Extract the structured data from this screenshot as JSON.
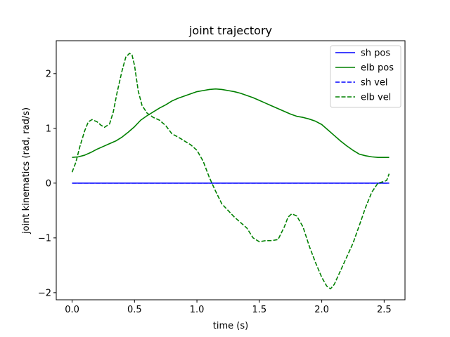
{
  "chart_data": {
    "type": "line",
    "title": "joint trajectory",
    "xlabel": "time (s)",
    "ylabel": "joint kinematics (rad, rad/s)",
    "xlim": [
      -0.127,
      2.667
    ],
    "ylim": [
      -2.13,
      2.6
    ],
    "xticks": [
      0.0,
      0.5,
      1.0,
      1.5,
      2.0,
      2.5
    ],
    "xtick_labels": [
      "0.0",
      "0.5",
      "1.0",
      "1.5",
      "2.0",
      "2.5"
    ],
    "yticks": [
      -2,
      -1,
      0,
      1,
      2
    ],
    "ytick_labels": [
      "−2",
      "−1",
      "0",
      "1",
      "2"
    ],
    "grid": false,
    "legend_position": "top-right",
    "series": [
      {
        "name": "sh pos",
        "color": "#0000ff",
        "dash": "solid",
        "x": [
          0.0,
          2.54
        ],
        "y": [
          0.0,
          0.0
        ]
      },
      {
        "name": "elb pos",
        "color": "#008000",
        "dash": "solid",
        "x": [
          0.0,
          0.05,
          0.1,
          0.15,
          0.2,
          0.25,
          0.3,
          0.35,
          0.4,
          0.45,
          0.5,
          0.55,
          0.6,
          0.65,
          0.7,
          0.75,
          0.8,
          0.85,
          0.9,
          0.95,
          1.0,
          1.05,
          1.1,
          1.15,
          1.2,
          1.25,
          1.3,
          1.35,
          1.4,
          1.45,
          1.5,
          1.55,
          1.6,
          1.65,
          1.7,
          1.75,
          1.8,
          1.85,
          1.9,
          1.95,
          2.0,
          2.05,
          2.1,
          2.15,
          2.2,
          2.25,
          2.3,
          2.35,
          2.4,
          2.45,
          2.5,
          2.54
        ],
        "y": [
          0.47,
          0.48,
          0.51,
          0.56,
          0.62,
          0.67,
          0.72,
          0.77,
          0.84,
          0.93,
          1.03,
          1.15,
          1.23,
          1.3,
          1.37,
          1.43,
          1.5,
          1.55,
          1.59,
          1.63,
          1.67,
          1.69,
          1.71,
          1.72,
          1.71,
          1.69,
          1.67,
          1.64,
          1.6,
          1.56,
          1.51,
          1.46,
          1.41,
          1.36,
          1.31,
          1.26,
          1.22,
          1.2,
          1.17,
          1.13,
          1.07,
          0.97,
          0.87,
          0.77,
          0.68,
          0.6,
          0.53,
          0.5,
          0.48,
          0.47,
          0.47,
          0.47
        ]
      },
      {
        "name": "sh vel",
        "color": "#0000ff",
        "dash": "dashed",
        "x": [
          0.0,
          2.54
        ],
        "y": [
          0.0,
          0.0
        ]
      },
      {
        "name": "elb vel",
        "color": "#008000",
        "dash": "dashed",
        "x": [
          0.0,
          0.03,
          0.06,
          0.1,
          0.13,
          0.16,
          0.2,
          0.23,
          0.26,
          0.3,
          0.33,
          0.36,
          0.4,
          0.43,
          0.46,
          0.48,
          0.5,
          0.53,
          0.56,
          0.6,
          0.65,
          0.7,
          0.75,
          0.8,
          0.85,
          0.9,
          0.95,
          1.0,
          1.05,
          1.1,
          1.15,
          1.2,
          1.25,
          1.3,
          1.35,
          1.4,
          1.45,
          1.5,
          1.55,
          1.6,
          1.65,
          1.7,
          1.73,
          1.76,
          1.8,
          1.85,
          1.9,
          1.95,
          2.0,
          2.04,
          2.07,
          2.1,
          2.15,
          2.2,
          2.25,
          2.3,
          2.35,
          2.4,
          2.45,
          2.5,
          2.52,
          2.54
        ],
        "y": [
          0.2,
          0.38,
          0.65,
          0.95,
          1.12,
          1.16,
          1.12,
          1.06,
          1.02,
          1.08,
          1.3,
          1.65,
          2.05,
          2.3,
          2.37,
          2.34,
          2.15,
          1.68,
          1.42,
          1.28,
          1.2,
          1.15,
          1.05,
          0.9,
          0.84,
          0.77,
          0.7,
          0.6,
          0.4,
          0.1,
          -0.15,
          -0.38,
          -0.5,
          -0.62,
          -0.72,
          -0.82,
          -1.0,
          -1.07,
          -1.05,
          -1.05,
          -1.03,
          -0.8,
          -0.62,
          -0.56,
          -0.6,
          -0.8,
          -1.15,
          -1.45,
          -1.72,
          -1.88,
          -1.93,
          -1.85,
          -1.6,
          -1.35,
          -1.1,
          -0.78,
          -0.45,
          -0.17,
          0.0,
          0.03,
          0.05,
          0.17
        ]
      }
    ]
  }
}
